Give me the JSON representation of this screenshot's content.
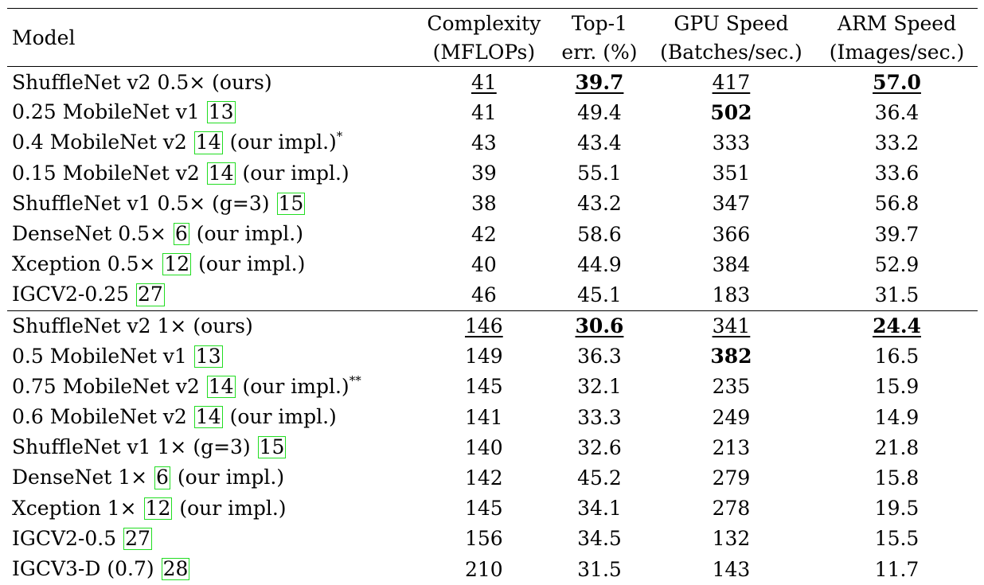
{
  "header": {
    "model": "Model",
    "complexity": [
      "Complexity",
      "(MFLOPs)"
    ],
    "top1": [
      "Top-1",
      "err. (%)"
    ],
    "gpu": [
      "GPU Speed",
      "(Batches/sec.)"
    ],
    "arm": [
      "ARM Speed",
      "(Images/sec.)"
    ]
  },
  "groups": [
    {
      "rows": [
        {
          "name": "ShuffleNet v2 0.5× (ours)",
          "cite": "",
          "suffix": "",
          "sup": "",
          "complexity": "41",
          "top1": "39.7",
          "gpu": "417",
          "arm": "57.0",
          "styles": {
            "complexity": "ul",
            "top1": "bold ul",
            "gpu": "ul",
            "arm": "bold ul"
          }
        },
        {
          "name": "0.25 MobileNet v1",
          "cite": "13",
          "suffix": "",
          "sup": "",
          "complexity": "41",
          "top1": "49.4",
          "gpu": "502",
          "arm": "36.4",
          "styles": {
            "gpu": "bold"
          }
        },
        {
          "name": "0.4 MobileNet v2",
          "cite": "14",
          "suffix": "(our impl.)",
          "sup": "*",
          "complexity": "43",
          "top1": "43.4",
          "gpu": "333",
          "arm": "33.2",
          "styles": {}
        },
        {
          "name": "0.15 MobileNet v2",
          "cite": "14",
          "suffix": "(our impl.)",
          "sup": "",
          "complexity": "39",
          "top1": "55.1",
          "gpu": "351",
          "arm": "33.6",
          "styles": {}
        },
        {
          "name": "ShuffleNet v1 0.5× (g=3)",
          "cite": "15",
          "suffix": "",
          "sup": "",
          "complexity": "38",
          "top1": "43.2",
          "gpu": "347",
          "arm": "56.8",
          "styles": {}
        },
        {
          "name": "DenseNet 0.5×",
          "cite": "6",
          "suffix": "(our impl.)",
          "sup": "",
          "complexity": "42",
          "top1": "58.6",
          "gpu": "366",
          "arm": "39.7",
          "styles": {}
        },
        {
          "name": "Xception 0.5×",
          "cite": "12",
          "suffix": "(our impl.)",
          "sup": "",
          "complexity": "40",
          "top1": "44.9",
          "gpu": "384",
          "arm": "52.9",
          "styles": {}
        },
        {
          "name": "IGCV2-0.25",
          "cite": "27",
          "suffix": "",
          "sup": "",
          "complexity": "46",
          "top1": "45.1",
          "gpu": "183",
          "arm": "31.5",
          "styles": {}
        }
      ]
    },
    {
      "rows": [
        {
          "name": "ShuffleNet v2 1× (ours)",
          "cite": "",
          "suffix": "",
          "sup": "",
          "complexity": "146",
          "top1": "30.6",
          "gpu": "341",
          "arm": "24.4",
          "styles": {
            "complexity": "ul",
            "top1": "bold ul",
            "gpu": "ul",
            "arm": "bold ul"
          }
        },
        {
          "name": "0.5 MobileNet v1",
          "cite": "13",
          "suffix": "",
          "sup": "",
          "complexity": "149",
          "top1": "36.3",
          "gpu": "382",
          "arm": "16.5",
          "styles": {
            "gpu": "bold"
          }
        },
        {
          "name": "0.75 MobileNet v2",
          "cite": "14",
          "suffix": "(our impl.)",
          "sup": "**",
          "complexity": "145",
          "top1": "32.1",
          "gpu": "235",
          "arm": "15.9",
          "styles": {}
        },
        {
          "name": "0.6 MobileNet v2",
          "cite": "14",
          "suffix": "(our impl.)",
          "sup": "",
          "complexity": "141",
          "top1": "33.3",
          "gpu": "249",
          "arm": "14.9",
          "styles": {}
        },
        {
          "name": "ShuffleNet v1 1× (g=3)",
          "cite": "15",
          "suffix": "",
          "sup": "",
          "complexity": "140",
          "top1": "32.6",
          "gpu": "213",
          "arm": "21.8",
          "styles": {}
        },
        {
          "name": "DenseNet 1×",
          "cite": "6",
          "suffix": "(our impl.)",
          "sup": "",
          "complexity": "142",
          "top1": "45.2",
          "gpu": "279",
          "arm": "15.8",
          "styles": {}
        },
        {
          "name": "Xception 1×",
          "cite": "12",
          "suffix": "(our impl.)",
          "sup": "",
          "complexity": "145",
          "top1": "34.1",
          "gpu": "278",
          "arm": "19.5",
          "styles": {}
        },
        {
          "name": "IGCV2-0.5",
          "cite": "27",
          "suffix": "",
          "sup": "",
          "complexity": "156",
          "top1": "34.5",
          "gpu": "132",
          "arm": "15.5",
          "styles": {}
        },
        {
          "name": "IGCV3-D (0.7)",
          "cite": "28",
          "suffix": "",
          "sup": "",
          "complexity": "210",
          "top1": "31.5",
          "gpu": "143",
          "arm": "11.7",
          "styles": {}
        }
      ]
    }
  ]
}
